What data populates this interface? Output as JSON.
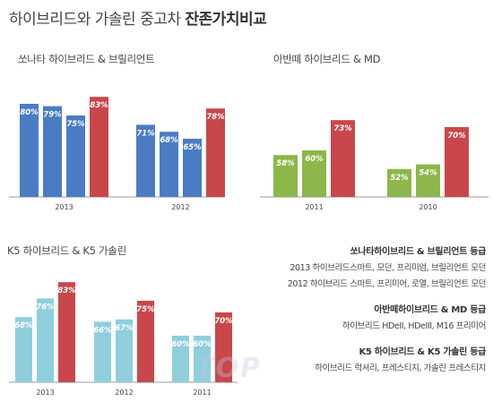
{
  "title": {
    "normal": "하이브리드와 가솔린 중고차 ",
    "bold": "잔존가치비교"
  },
  "colors": {
    "blue": "#4a7cc4",
    "red": "#c9474a",
    "green": "#8cb74a",
    "lightblue": "#8fcfdd",
    "axis": "#999999"
  },
  "chart_data": [
    {
      "type": "bar",
      "title": "쏘나타 하이브리드 & 브릴리언트",
      "categories": [
        "2013",
        "2012"
      ],
      "series": [
        {
          "color": "blue",
          "values": [
            80,
            71
          ]
        },
        {
          "color": "blue",
          "values": [
            79,
            68
          ]
        },
        {
          "color": "blue",
          "values": [
            75,
            65
          ]
        },
        {
          "color": "red",
          "values": [
            83,
            78
          ]
        }
      ],
      "ylim": [
        40,
        90
      ]
    },
    {
      "type": "bar",
      "title": "아반떼 하이브리드 & MD",
      "categories": [
        "2011",
        "2010"
      ],
      "series": [
        {
          "color": "green",
          "values": [
            58,
            52
          ]
        },
        {
          "color": "green",
          "values": [
            60,
            54
          ]
        },
        {
          "color": "red",
          "values": [
            73,
            70
          ]
        }
      ],
      "ylim": [
        40,
        90
      ]
    },
    {
      "type": "bar",
      "title": "K5 하이브리드 & K5 가솔린",
      "categories": [
        "2013",
        "2012",
        "2011"
      ],
      "series": [
        {
          "color": "lightblue",
          "values": [
            68,
            66,
            60
          ]
        },
        {
          "color": "lightblue",
          "values": [
            76,
            67,
            60
          ]
        },
        {
          "color": "red",
          "values": [
            83,
            75,
            70
          ]
        }
      ],
      "ylim": [
        40,
        90
      ]
    }
  ],
  "legend": [
    {
      "heading": "쏘나타하이브리드 & 브릴리언트 등급",
      "lines": [
        "2013 하이브리드스마트, 모던, 프리미엄, 브릴리언트 모던",
        "2012 하이브리드 스마트, 프리미어, 로열, 브릴리언트 모던"
      ]
    },
    {
      "heading": "아반떼하이브리드 & MD 등급",
      "lines": [
        "하이브리드 HDeII, HDeIII, M16 프리미어"
      ]
    },
    {
      "heading": "K5 하이브리드 & K5 가솔린 등급",
      "lines": [
        "하이브리드 럭셔리, 프레스티지, 가솔린 프레스티지"
      ]
    }
  ]
}
